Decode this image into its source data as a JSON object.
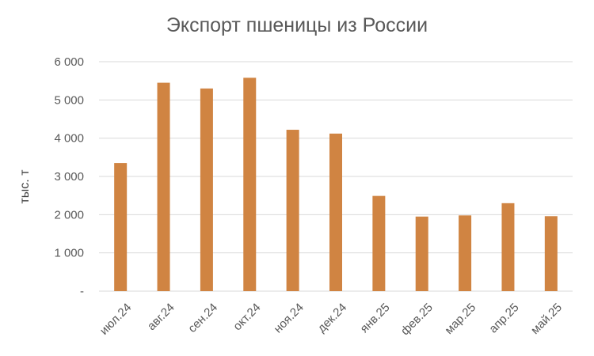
{
  "chart_data": {
    "type": "bar",
    "title": "Экспорт пшеницы из России",
    "xlabel": "",
    "ylabel": "тыс. т",
    "categories": [
      "июл.24",
      "авг.24",
      "сен.24",
      "окт.24",
      "ноя.24",
      "дек.24",
      "янв.25",
      "фев.25",
      "мар.25",
      "апр.25",
      "май.25"
    ],
    "series": [
      {
        "values": [
          3350,
          5450,
          5300,
          5580,
          4220,
          4120,
          2490,
          1950,
          1980,
          2300,
          1960
        ]
      }
    ],
    "ylim": [
      0,
      6000
    ],
    "yticks": [
      0,
      1000,
      2000,
      3000,
      4000,
      5000,
      6000
    ],
    "ytick_labels": [
      "-",
      "1 000",
      "2 000",
      "3 000",
      "4 000",
      "5 000",
      "6 000"
    ],
    "grid": true,
    "legend": "none",
    "colors": {
      "bar": "#d08442",
      "grid": "#d9d9d9",
      "text": "#595959"
    }
  }
}
